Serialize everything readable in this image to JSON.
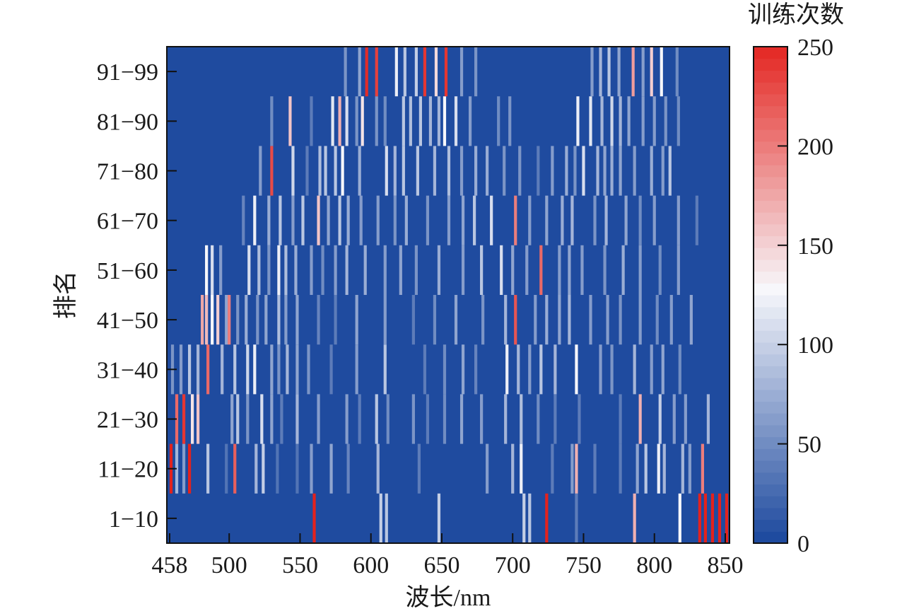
{
  "chart_data": {
    "type": "heatmap",
    "title": "",
    "xlabel": "波长/nm",
    "ylabel": "排名",
    "colorbar_label": "训练次数",
    "x_range": [
      456,
      853
    ],
    "x_ticks": [
      458,
      500,
      550,
      600,
      650,
      700,
      750,
      800,
      850
    ],
    "y_categories": [
      "1-10",
      "11-20",
      "21-30",
      "31-40",
      "41-50",
      "51-60",
      "61-70",
      "71-80",
      "81-90",
      "91-99"
    ],
    "y_tick_labels": [
      "1−10",
      "11−20",
      "21−30",
      "31−40",
      "41−50",
      "51−60",
      "61−70",
      "71−80",
      "81−90",
      "91−99"
    ],
    "colorbar_range": [
      0,
      250
    ],
    "colorbar_ticks": [
      0,
      50,
      100,
      150,
      200,
      250
    ],
    "colormap": {
      "low": "#1f4b9f",
      "mid": "#f7f7fb",
      "high": "#e3221d"
    },
    "background_value": 0,
    "rows": [
      {
        "rank": "1-10",
        "bands": [
          [
            560,
            250
          ],
          [
            607,
            100
          ],
          [
            611,
            95
          ],
          [
            648,
            100
          ],
          [
            708,
            100
          ],
          [
            712,
            90
          ],
          [
            724,
            250
          ],
          [
            745,
            40
          ],
          [
            786,
            170
          ],
          [
            818,
            130
          ],
          [
            832,
            250
          ],
          [
            836,
            250
          ],
          [
            841,
            250
          ],
          [
            846,
            250
          ],
          [
            851,
            250
          ]
        ]
      },
      {
        "rank": "11-20",
        "bands": [
          [
            459,
            250
          ],
          [
            463,
            80
          ],
          [
            468,
            60
          ],
          [
            472,
            250
          ],
          [
            485,
            90
          ],
          [
            498,
            30
          ],
          [
            504,
            220
          ],
          [
            519,
            80
          ],
          [
            524,
            100
          ],
          [
            534,
            35
          ],
          [
            548,
            30
          ],
          [
            558,
            60
          ],
          [
            572,
            70
          ],
          [
            584,
            45
          ],
          [
            605,
            80
          ],
          [
            634,
            40
          ],
          [
            682,
            60
          ],
          [
            700,
            80
          ],
          [
            706,
            120
          ],
          [
            728,
            40
          ],
          [
            742,
            60
          ],
          [
            745,
            170
          ],
          [
            758,
            40
          ],
          [
            776,
            40
          ],
          [
            788,
            70
          ],
          [
            794,
            90
          ],
          [
            803,
            120
          ],
          [
            807,
            80
          ],
          [
            820,
            80
          ],
          [
            825,
            60
          ],
          [
            834,
            200
          ]
        ]
      },
      {
        "rank": "21-30",
        "bands": [
          [
            463,
            210
          ],
          [
            468,
            240
          ],
          [
            474,
            140
          ],
          [
            478,
            160
          ],
          [
            502,
            70
          ],
          [
            506,
            90
          ],
          [
            513,
            55
          ],
          [
            523,
            110
          ],
          [
            530,
            70
          ],
          [
            537,
            40
          ],
          [
            548,
            80
          ],
          [
            563,
            60
          ],
          [
            583,
            60
          ],
          [
            592,
            40
          ],
          [
            604,
            95
          ],
          [
            612,
            50
          ],
          [
            630,
            55
          ],
          [
            640,
            40
          ],
          [
            652,
            50
          ],
          [
            664,
            70
          ],
          [
            678,
            60
          ],
          [
            695,
            80
          ],
          [
            706,
            85
          ],
          [
            718,
            50
          ],
          [
            730,
            40
          ],
          [
            747,
            40
          ],
          [
            776,
            40
          ],
          [
            790,
            170
          ],
          [
            804,
            100
          ],
          [
            814,
            60
          ],
          [
            822,
            60
          ],
          [
            838,
            80
          ]
        ]
      },
      {
        "rank": "31-40",
        "bands": [
          [
            460,
            55
          ],
          [
            466,
            60
          ],
          [
            472,
            95
          ],
          [
            478,
            80
          ],
          [
            485,
            210
          ],
          [
            495,
            80
          ],
          [
            504,
            90
          ],
          [
            513,
            105
          ],
          [
            518,
            120
          ],
          [
            530,
            70
          ],
          [
            535,
            55
          ],
          [
            541,
            80
          ],
          [
            548,
            70
          ],
          [
            556,
            55
          ],
          [
            572,
            40
          ],
          [
            590,
            60
          ],
          [
            610,
            95
          ],
          [
            638,
            40
          ],
          [
            652,
            50
          ],
          [
            665,
            70
          ],
          [
            674,
            45
          ],
          [
            696,
            120
          ],
          [
            704,
            80
          ],
          [
            712,
            60
          ],
          [
            720,
            90
          ],
          [
            730,
            80
          ],
          [
            745,
            125
          ],
          [
            762,
            60
          ],
          [
            770,
            55
          ],
          [
            786,
            80
          ],
          [
            798,
            60
          ],
          [
            806,
            70
          ],
          [
            818,
            50
          ]
        ]
      },
      {
        "rank": "41-50",
        "bands": [
          [
            481,
            175
          ],
          [
            484,
            165
          ],
          [
            488,
            130
          ],
          [
            492,
            150
          ],
          [
            498,
            70
          ],
          [
            500,
            200
          ],
          [
            506,
            55
          ],
          [
            512,
            75
          ],
          [
            520,
            55
          ],
          [
            526,
            70
          ],
          [
            535,
            85
          ],
          [
            540,
            60
          ],
          [
            548,
            70
          ],
          [
            563,
            45
          ],
          [
            575,
            40
          ],
          [
            590,
            70
          ],
          [
            610,
            60
          ],
          [
            630,
            40
          ],
          [
            645,
            50
          ],
          [
            660,
            70
          ],
          [
            679,
            55
          ],
          [
            695,
            80
          ],
          [
            702,
            225
          ],
          [
            716,
            60
          ],
          [
            724,
            75
          ],
          [
            733,
            70
          ],
          [
            740,
            80
          ],
          [
            755,
            60
          ],
          [
            767,
            60
          ],
          [
            776,
            55
          ],
          [
            790,
            60
          ],
          [
            802,
            50
          ],
          [
            812,
            60
          ],
          [
            826,
            70
          ]
        ]
      },
      {
        "rank": "51-60",
        "bands": [
          [
            484,
            125
          ],
          [
            488,
            110
          ],
          [
            494,
            60
          ],
          [
            514,
            110
          ],
          [
            521,
            85
          ],
          [
            528,
            55
          ],
          [
            535,
            120
          ],
          [
            540,
            85
          ],
          [
            547,
            75
          ],
          [
            558,
            60
          ],
          [
            566,
            50
          ],
          [
            575,
            60
          ],
          [
            583,
            80
          ],
          [
            596,
            75
          ],
          [
            610,
            60
          ],
          [
            621,
            70
          ],
          [
            632,
            55
          ],
          [
            648,
            75
          ],
          [
            665,
            60
          ],
          [
            678,
            90
          ],
          [
            692,
            110
          ],
          [
            700,
            70
          ],
          [
            710,
            60
          ],
          [
            720,
            210
          ],
          [
            733,
            65
          ],
          [
            740,
            70
          ],
          [
            749,
            60
          ],
          [
            765,
            55
          ],
          [
            778,
            75
          ],
          [
            790,
            60
          ],
          [
            804,
            50
          ],
          [
            817,
            60
          ]
        ]
      },
      {
        "rank": "61-70",
        "bands": [
          [
            510,
            45
          ],
          [
            518,
            120
          ],
          [
            528,
            75
          ],
          [
            536,
            90
          ],
          [
            545,
            65
          ],
          [
            552,
            90
          ],
          [
            563,
            160
          ],
          [
            570,
            70
          ],
          [
            578,
            90
          ],
          [
            584,
            75
          ],
          [
            593,
            60
          ],
          [
            605,
            60
          ],
          [
            617,
            55
          ],
          [
            625,
            75
          ],
          [
            640,
            55
          ],
          [
            655,
            65
          ],
          [
            665,
            70
          ],
          [
            673,
            95
          ],
          [
            685,
            110
          ],
          [
            702,
            200
          ],
          [
            712,
            60
          ],
          [
            724,
            70
          ],
          [
            735,
            75
          ],
          [
            742,
            80
          ],
          [
            758,
            55
          ],
          [
            766,
            80
          ],
          [
            780,
            70
          ],
          [
            790,
            50
          ],
          [
            800,
            60
          ],
          [
            817,
            60
          ],
          [
            830,
            40
          ]
        ]
      },
      {
        "rank": "71-80",
        "bands": [
          [
            522,
            60
          ],
          [
            530,
            230
          ],
          [
            545,
            105
          ],
          [
            555,
            40
          ],
          [
            564,
            85
          ],
          [
            568,
            95
          ],
          [
            575,
            95
          ],
          [
            580,
            125
          ],
          [
            592,
            75
          ],
          [
            611,
            110
          ],
          [
            617,
            80
          ],
          [
            623,
            95
          ],
          [
            633,
            90
          ],
          [
            645,
            80
          ],
          [
            655,
            85
          ],
          [
            664,
            65
          ],
          [
            674,
            75
          ],
          [
            682,
            75
          ],
          [
            694,
            55
          ],
          [
            705,
            55
          ],
          [
            718,
            40
          ],
          [
            728,
            60
          ],
          [
            738,
            75
          ],
          [
            744,
            55
          ],
          [
            750,
            110
          ],
          [
            760,
            80
          ],
          [
            765,
            70
          ],
          [
            770,
            75
          ],
          [
            776,
            70
          ],
          [
            786,
            60
          ],
          [
            798,
            75
          ],
          [
            806,
            60
          ],
          [
            811,
            90
          ]
        ]
      },
      {
        "rank": "81-90",
        "bands": [
          [
            530,
            50
          ],
          [
            543,
            155
          ],
          [
            558,
            40
          ],
          [
            573,
            115
          ],
          [
            578,
            170
          ],
          [
            583,
            110
          ],
          [
            590,
            55
          ],
          [
            594,
            140
          ],
          [
            604,
            55
          ],
          [
            610,
            50
          ],
          [
            623,
            95
          ],
          [
            628,
            85
          ],
          [
            635,
            90
          ],
          [
            642,
            80
          ],
          [
            648,
            80
          ],
          [
            652,
            125
          ],
          [
            660,
            110
          ],
          [
            670,
            65
          ],
          [
            690,
            50
          ],
          [
            698,
            55
          ],
          [
            746,
            120
          ],
          [
            755,
            115
          ],
          [
            763,
            80
          ],
          [
            770,
            105
          ],
          [
            776,
            80
          ],
          [
            782,
            70
          ],
          [
            792,
            65
          ],
          [
            800,
            60
          ],
          [
            808,
            55
          ],
          [
            817,
            50
          ]
        ]
      },
      {
        "rank": "91-99",
        "bands": [
          [
            582,
            55
          ],
          [
            592,
            70
          ],
          [
            597,
            245
          ],
          [
            604,
            235
          ],
          [
            618,
            120
          ],
          [
            624,
            90
          ],
          [
            632,
            100
          ],
          [
            638,
            240
          ],
          [
            646,
            145
          ],
          [
            653,
            240
          ],
          [
            664,
            60
          ],
          [
            674,
            55
          ],
          [
            756,
            60
          ],
          [
            762,
            80
          ],
          [
            768,
            90
          ],
          [
            775,
            70
          ],
          [
            785,
            180
          ],
          [
            792,
            60
          ],
          [
            798,
            150
          ],
          [
            805,
            125
          ],
          [
            816,
            50
          ]
        ]
      }
    ]
  }
}
